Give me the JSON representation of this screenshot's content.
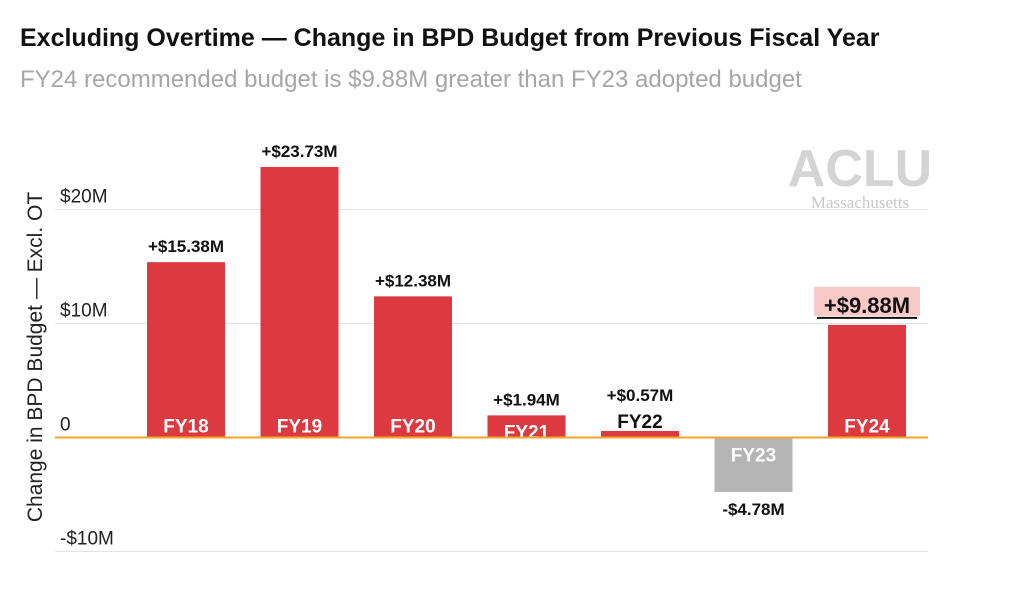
{
  "title": "Excluding Overtime — Change in BPD Budget from Previous Fiscal Year",
  "subtitle": "FY24 recommended budget is $9.88M greater than FY23 adopted budget",
  "logo": {
    "main": "ACLU",
    "sub": "Massachusetts"
  },
  "colors": {
    "positive": "#dc3a40",
    "negative": "#b5b5b5",
    "zero_line": "#f3a52a",
    "grid": "#e4e4e4",
    "highlight_bg": "#f7c9c7"
  },
  "chart_data": {
    "type": "bar",
    "categories": [
      "FY18",
      "FY19",
      "FY20",
      "FY21",
      "FY22",
      "FY23",
      "FY24"
    ],
    "values": [
      15.38,
      23.73,
      12.38,
      1.94,
      0.57,
      -4.78,
      9.88
    ],
    "value_labels": [
      "+$15.38M",
      "+$23.73M",
      "+$12.38M",
      "+$1.94M",
      "+$0.57M",
      "-$4.78M",
      "+$9.88M"
    ],
    "highlighted_index": 6,
    "ylabel": "Change in BPD Budget — Excl. OT",
    "yticks": [
      {
        "value": 20,
        "label": "$20M"
      },
      {
        "value": 10,
        "label": "$10M"
      },
      {
        "value": 0,
        "label": "0"
      },
      {
        "value": -10,
        "label": "-$10M"
      }
    ],
    "ylim": [
      -10,
      25
    ],
    "grid": true
  }
}
